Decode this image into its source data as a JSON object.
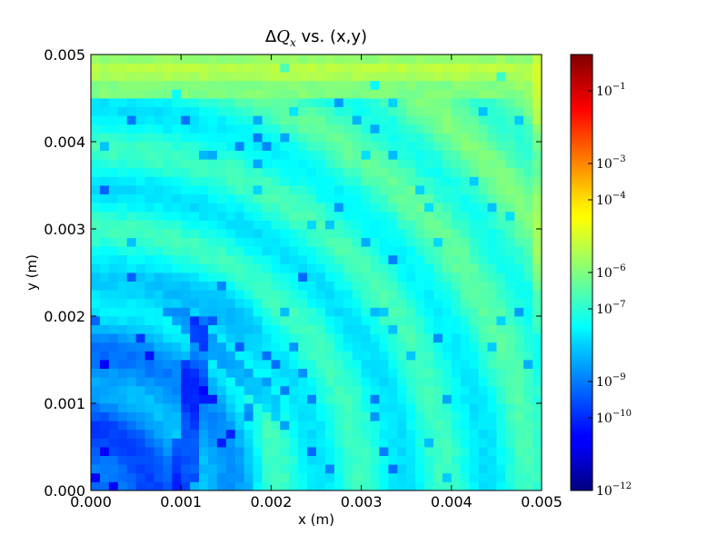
{
  "chart_data": {
    "type": "heatmap",
    "title": "ΔQₓ vs. (x,y)",
    "title_parts": {
      "delta": "Δ",
      "q": "Q",
      "sub": "x",
      "rest": " vs. (x,y)"
    },
    "xlabel": "x (m)",
    "ylabel": "y (m)",
    "xlim": [
      0.0,
      0.005
    ],
    "ylim": [
      0.0,
      0.005
    ],
    "x_ticks": [
      "0.000",
      "0.001",
      "0.002",
      "0.003",
      "0.004",
      "0.005"
    ],
    "y_ticks": [
      "0.000",
      "0.001",
      "0.002",
      "0.003",
      "0.004",
      "0.005"
    ],
    "colorbar": {
      "scale": "log",
      "colormap": "jet",
      "range": [
        1e-12,
        1.0
      ],
      "ticks": [
        {
          "base": "10",
          "exp": "−1",
          "value": 0.1
        },
        {
          "base": "10",
          "exp": "−3",
          "value": 0.001
        },
        {
          "base": "10",
          "exp": "−4",
          "value": 0.0001
        },
        {
          "base": "10",
          "exp": "−6",
          "value": 1e-06
        },
        {
          "base": "10",
          "exp": "−7",
          "value": 1e-07
        },
        {
          "base": "10",
          "exp": "−9",
          "value": 1e-09
        },
        {
          "base": "10",
          "exp": "−10",
          "value": 1e-10
        },
        {
          "base": "10",
          "exp": "−12",
          "value": 1e-12
        }
      ]
    },
    "grid_size": [
      50,
      50
    ],
    "pattern": {
      "background_log10": -7.3,
      "top_band_log10": -5.7,
      "lower_left_log10": -8.6,
      "min_log10": -10.5
    }
  }
}
